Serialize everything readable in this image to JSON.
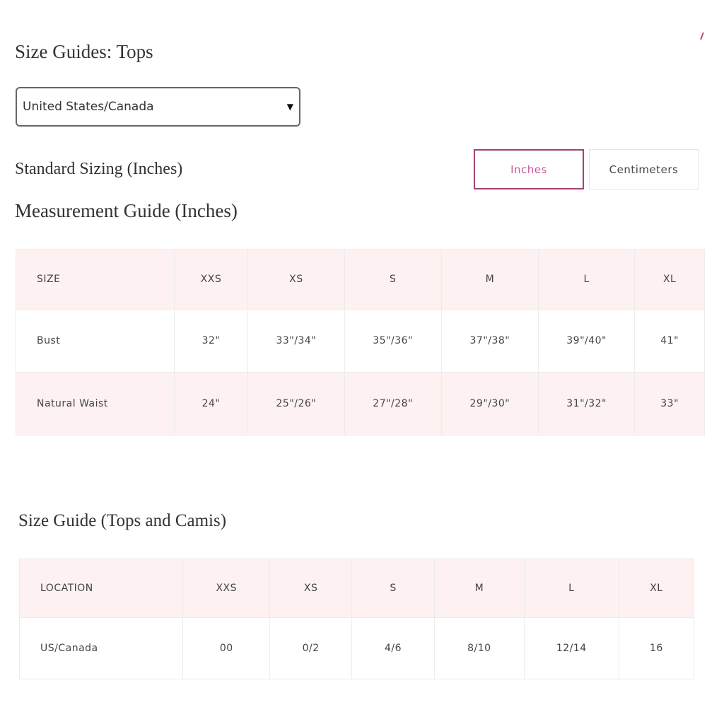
{
  "title": "Size Guides: Tops",
  "region_select": {
    "value": "United States/Canada",
    "icon": "caret-down-icon"
  },
  "standard_sizing": "Standard Sizing (Inches)",
  "units": {
    "inches": "Inches",
    "centimeters": "Centimeters",
    "selected": "Inches",
    "accent": "#a24376"
  },
  "measurement_title": "Measurement Guide (Inches)",
  "measurement_table": {
    "header": [
      "SIZE",
      "XXS",
      "XS",
      "S",
      "M",
      "L",
      "XL"
    ],
    "rows": [
      [
        "Bust",
        "32\"",
        "33\"/34\"",
        "35\"/36\"",
        "37\"/38\"",
        "39\"/40\"",
        "41\""
      ],
      [
        "Natural Waist",
        "24\"",
        "25\"/26\"",
        "27\"/28\"",
        "29\"/30\"",
        "31\"/32\"",
        "33\""
      ]
    ]
  },
  "camis_title": "Size Guide (Tops and Camis)",
  "camis_table": {
    "header": [
      "LOCATION",
      "XXS",
      "XS",
      "S",
      "M",
      "L",
      "XL"
    ],
    "rows": [
      [
        "US/Canada",
        "00",
        "0/2",
        "4/6",
        "8/10",
        "12/14",
        "16"
      ]
    ]
  }
}
